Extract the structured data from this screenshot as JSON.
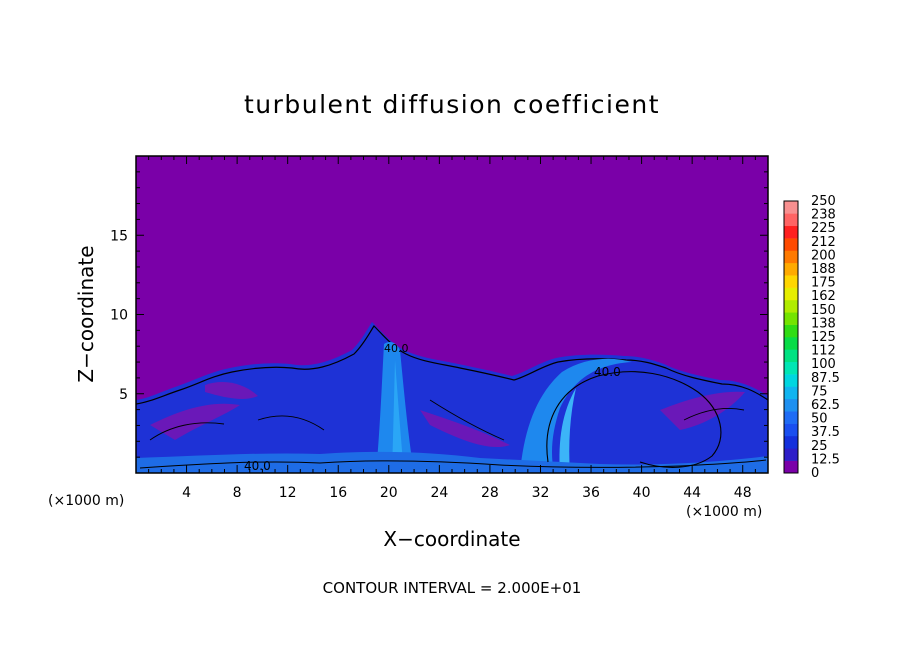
{
  "chart_data": {
    "type": "heatmap",
    "title": "turbulent diffusion coefficient",
    "xlabel": "X−coordinate",
    "ylabel": "Z−coordinate",
    "x_unit": "(×1000 m)",
    "x_unit_right": "(×1000 m)",
    "footer": "CONTOUR INTERVAL = 2.000E+01",
    "xlim": [
      0,
      50
    ],
    "ylim": [
      0,
      20
    ],
    "x_ticks": [
      4,
      8,
      12,
      16,
      20,
      24,
      28,
      32,
      36,
      40,
      44,
      48
    ],
    "y_ticks": [
      5,
      10,
      15
    ],
    "background_value": 0,
    "contour_labels": [
      "40.0",
      "40.0",
      "40.0"
    ],
    "colorbar": {
      "labels": [
        "250",
        "238",
        "225",
        "212",
        "200",
        "188",
        "175",
        "162",
        "150",
        "138",
        "125",
        "112",
        "100",
        "87.5",
        "75",
        "62.5",
        "50",
        "37.5",
        "25",
        "12.5",
        "0"
      ],
      "colors": [
        "#7a00a8",
        "#2e1ec8",
        "#1430dc",
        "#1a4ff0",
        "#1f6cf5",
        "#1e90f0",
        "#10b4f0",
        "#00d6e0",
        "#00e6b4",
        "#00e282",
        "#08dc46",
        "#30dc14",
        "#74e400",
        "#b0ec00",
        "#e6ee00",
        "#ffd600",
        "#ffaa00",
        "#ff7a00",
        "#ff4a00",
        "#ff2020",
        "#ff6464",
        "#f89090"
      ]
    }
  }
}
